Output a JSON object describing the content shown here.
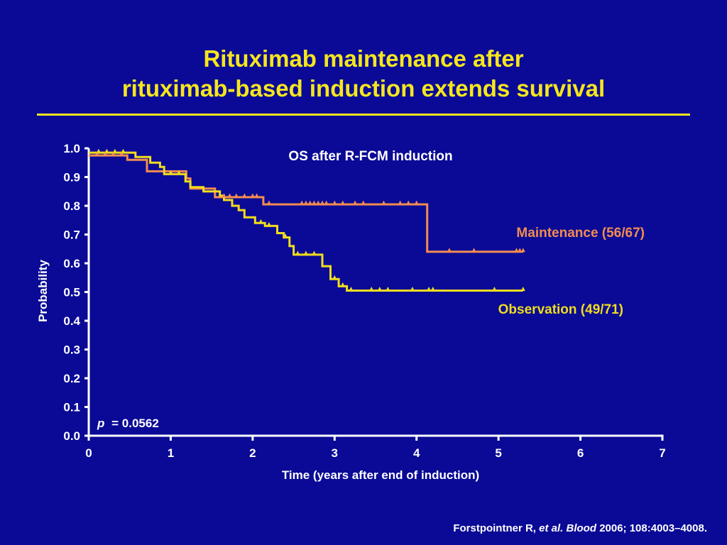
{
  "slide": {
    "title_line1": "Rituximab maintenance after",
    "title_line2": "rituximab-based induction extends survival",
    "citation_author": "Forstpointner R,",
    "citation_etal": "et al.",
    "citation_journal": "Blood",
    "citation_rest": "2006; 108:4003–4008."
  },
  "colors": {
    "background": "#0a0a96",
    "title": "#f5e61e",
    "maintenance": "#f28c50",
    "observation": "#f0dc1e",
    "text": "#ffffff"
  },
  "chart_data": {
    "type": "line",
    "title": "OS after R-FCM induction",
    "xlabel": "Time (years after end of induction)",
    "ylabel": "Probability",
    "xlim": [
      0,
      7
    ],
    "ylim": [
      0,
      1
    ],
    "x_ticks": [
      "0",
      "1",
      "2",
      "3",
      "4",
      "5",
      "6",
      "7"
    ],
    "y_ticks": [
      "0.0",
      "0.1",
      "0.2",
      "0.3",
      "0.4",
      "0.5",
      "0.6",
      "0.7",
      "0.8",
      "0.9",
      "1.0"
    ],
    "p_label": "p",
    "p_value": "= 0.0562",
    "grid": false,
    "series": [
      {
        "name": "Maintenance (56/67)",
        "color": "#f28c50",
        "x": [
          0,
          0.47,
          0.47,
          0.71,
          0.71,
          1.19,
          1.19,
          1.24,
          1.24,
          1.54,
          1.54,
          2.13,
          2.13,
          2.13,
          2.13,
          4.13,
          4.13,
          5.3
        ],
        "y": [
          0.975,
          0.975,
          0.96,
          0.96,
          0.92,
          0.92,
          0.895,
          0.895,
          0.86,
          0.86,
          0.83,
          0.83,
          0.805,
          0.805,
          0.805,
          0.805,
          0.64,
          0.64
        ],
        "censored_x": [
          0.1,
          0.2,
          0.3,
          0.4,
          1.65,
          1.72,
          1.8,
          1.9,
          2.0,
          2.05,
          2.2,
          2.6,
          2.65,
          2.7,
          2.75,
          2.8,
          2.85,
          2.9,
          3.0,
          3.1,
          3.25,
          3.35,
          3.6,
          3.8,
          3.9,
          4.0,
          4.4,
          4.7,
          5.22,
          5.26,
          5.3
        ]
      },
      {
        "name": "Observation (49/71)",
        "color": "#f0dc1e",
        "x": [
          0,
          0.57,
          0.57,
          0.75,
          0.75,
          0.87,
          0.87,
          0.92,
          0.92,
          1.18,
          1.18,
          1.24,
          1.24,
          1.4,
          1.4,
          1.6,
          1.6,
          1.65,
          1.65,
          1.75,
          1.75,
          1.83,
          1.83,
          1.9,
          1.9,
          2.03,
          2.03,
          2.15,
          2.15,
          2.3,
          2.3,
          2.38,
          2.38,
          2.45,
          2.45,
          2.5,
          2.5,
          2.85,
          2.85,
          2.95,
          2.95,
          3.05,
          3.05,
          3.15,
          3.15,
          3.3,
          3.3,
          5.3
        ],
        "y": [
          0.985,
          0.985,
          0.97,
          0.97,
          0.95,
          0.95,
          0.935,
          0.935,
          0.91,
          0.91,
          0.885,
          0.885,
          0.865,
          0.865,
          0.85,
          0.85,
          0.835,
          0.835,
          0.82,
          0.82,
          0.8,
          0.8,
          0.785,
          0.785,
          0.76,
          0.76,
          0.74,
          0.74,
          0.73,
          0.73,
          0.705,
          0.705,
          0.69,
          0.69,
          0.66,
          0.66,
          0.63,
          0.63,
          0.59,
          0.59,
          0.545,
          0.545,
          0.52,
          0.52,
          0.505,
          0.505,
          0.505,
          0.505
        ],
        "censored_x": [
          0.12,
          0.22,
          0.32,
          0.42,
          1.0,
          1.1,
          2.1,
          2.2,
          2.4,
          2.55,
          2.65,
          2.75,
          3.0,
          3.1,
          3.2,
          3.45,
          3.55,
          3.65,
          3.95,
          4.15,
          4.2,
          4.95,
          5.3
        ]
      }
    ]
  }
}
